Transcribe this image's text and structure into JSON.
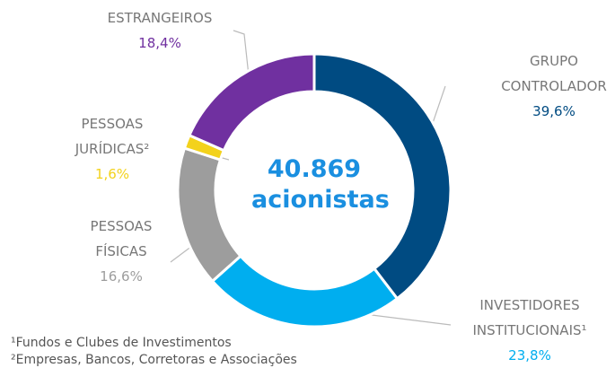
{
  "chart_data": {
    "type": "pie",
    "center_label": "40.869 acionistas",
    "categories": [
      "GRUPO CONTROLADOR",
      "INVESTIDORES INSTITUCIONAIS¹",
      "PESSOAS FÍSICAS",
      "PESSOAS JURÍDICAS²",
      "ESTRANGEIROS"
    ],
    "values": [
      39.6,
      23.8,
      16.6,
      1.6,
      18.4
    ],
    "value_labels": [
      "39,6%",
      "23,8%",
      "16,6%",
      "1,6%",
      "18,4%"
    ],
    "colors": [
      "#004b82",
      "#00aeef",
      "#9d9d9d",
      "#f3d21c",
      "#7030a0"
    ],
    "footnotes": [
      "¹Fundos e Clubes de Investimentos",
      "²Empresas, Bancos, Corretoras e Associações"
    ]
  }
}
